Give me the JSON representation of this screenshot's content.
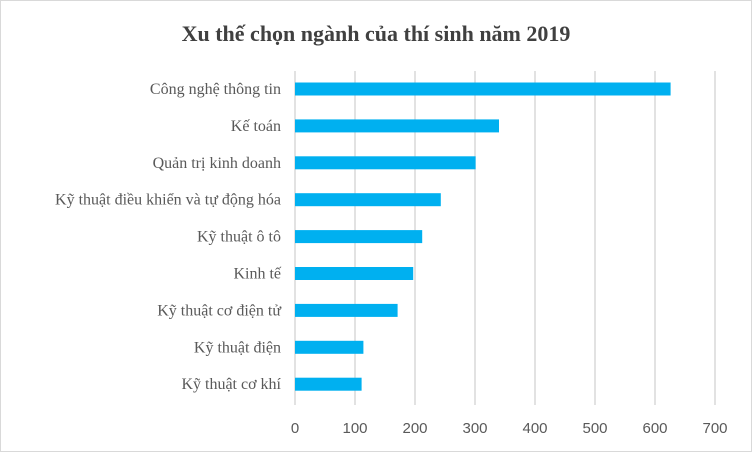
{
  "chart_data": {
    "type": "bar",
    "orientation": "horizontal",
    "title": "Xu thế chọn ngành của thí sinh năm 2019",
    "xlabel": "",
    "ylabel": "",
    "categories": [
      "Công nghệ thông tin",
      "Kế toán",
      "Quản trị kinh doanh",
      "Kỹ thuật điều khiển và tự động hóa",
      "Kỹ thuật ô tô",
      "Kinh tế",
      "Kỹ thuật cơ điện tử",
      "Kỹ thuật điện",
      "Kỹ thuật cơ khí"
    ],
    "values": [
      626,
      340,
      301,
      243,
      212,
      197,
      171,
      114,
      111
    ],
    "xlim": [
      0,
      700
    ],
    "xticks": [
      "0",
      "100",
      "200",
      "300",
      "400",
      "500",
      "600",
      "700"
    ],
    "grid": true,
    "legend": "none",
    "bar_color": "#00b0f0"
  }
}
